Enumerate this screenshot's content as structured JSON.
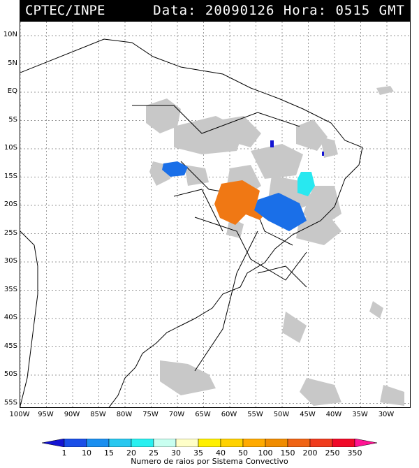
{
  "header": {
    "source": "CPTEC/INPE",
    "datetime": "Data: 20090126 Hora: 0515 GMT"
  },
  "map": {
    "lat_labels": [
      "10N",
      "5N",
      "EQ",
      "5S",
      "10S",
      "15S",
      "20S",
      "25S",
      "30S",
      "35S",
      "40S",
      "45S",
      "50S",
      "55S"
    ],
    "lon_labels": [
      "100W",
      "95W",
      "90W",
      "85W",
      "80W",
      "75W",
      "70W",
      "65W",
      "60W",
      "55W",
      "50W",
      "45W",
      "40W",
      "35W",
      "30W"
    ],
    "gridlines": true,
    "colors": {
      "cloud": "#c8c8c8",
      "cells_blue": "#1a6fe8",
      "cells_dark_blue": "#1414d2",
      "cells_cyan": "#28e8f0",
      "cells_orange": "#f07814"
    }
  },
  "legend": {
    "ticks": [
      "1",
      "10",
      "15",
      "20",
      "25",
      "30",
      "35",
      "40",
      "50",
      "100",
      "150",
      "200",
      "250",
      "350"
    ],
    "colors": [
      "#1414d2",
      "#1a4fe8",
      "#1a8ff0",
      "#28c8f0",
      "#28f0f0",
      "#c8fff0",
      "#ffffc8",
      "#fff000",
      "#ffd200",
      "#ffaa00",
      "#f08c00",
      "#f06414",
      "#f03c1e",
      "#f00a28",
      "#ff1493"
    ],
    "caption": "Numero de raios por Sistema Convectivo"
  }
}
